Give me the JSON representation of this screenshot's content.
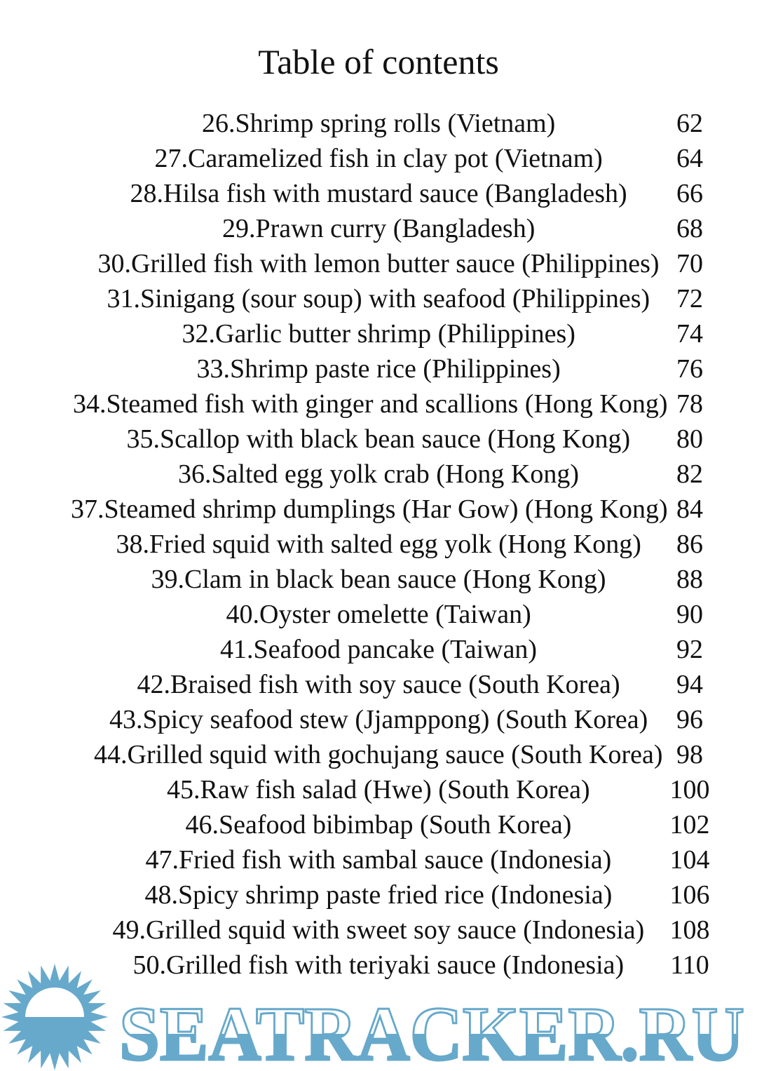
{
  "title": "Table of contents",
  "entries": [
    {
      "label": "26.Shrimp spring rolls (Vietnam)",
      "page": "62"
    },
    {
      "label": "27.Caramelized fish in clay pot (Vietnam)",
      "page": "64"
    },
    {
      "label": "28.Hilsa fish with mustard sauce (Bangladesh)",
      "page": "66"
    },
    {
      "label": "29.Prawn curry (Bangladesh)",
      "page": "68"
    },
    {
      "label": "30.Grilled fish with lemon butter sauce (Philippines)",
      "page": "70"
    },
    {
      "label": "31.Sinigang (sour soup) with seafood (Philippines)",
      "page": "72"
    },
    {
      "label": "32.Garlic butter shrimp (Philippines)",
      "page": "74"
    },
    {
      "label": "33.Shrimp paste rice (Philippines)",
      "page": "76"
    },
    {
      "label": "34.Steamed fish with ginger and scallions (Hong Kong)",
      "page": "78"
    },
    {
      "label": "35.Scallop with black bean sauce (Hong Kong)",
      "page": "80"
    },
    {
      "label": "36.Salted egg yolk crab (Hong Kong)",
      "page": "82"
    },
    {
      "label": "37.Steamed shrimp dumplings (Har Gow) (Hong Kong)",
      "page": "84"
    },
    {
      "label": "38.Fried squid with salted egg yolk (Hong Kong)",
      "page": "86"
    },
    {
      "label": "39.Clam in black bean sauce (Hong Kong)",
      "page": "88"
    },
    {
      "label": "40.Oyster omelette (Taiwan)",
      "page": "90"
    },
    {
      "label": "41.Seafood pancake (Taiwan)",
      "page": "92"
    },
    {
      "label": "42.Braised fish with soy sauce (South Korea)",
      "page": "94"
    },
    {
      "label": "43.Spicy seafood stew (Jjamppong) (South Korea)",
      "page": "96"
    },
    {
      "label": "44.Grilled squid with gochujang sauce (South Korea)",
      "page": "98"
    },
    {
      "label": "45.Raw fish salad (Hwe) (South Korea)",
      "page": "100"
    },
    {
      "label": "46.Seafood bibimbap (South Korea)",
      "page": "102"
    },
    {
      "label": "47.Fried fish with sambal sauce (Indonesia)",
      "page": "104"
    },
    {
      "label": "48.Spicy shrimp paste fried rice (Indonesia)",
      "page": "106"
    },
    {
      "label": "49.Grilled squid with sweet soy sauce (Indonesia)",
      "page": "108"
    },
    {
      "label": "50.Grilled fish with teriyaki sauce (Indonesia)",
      "page": "110"
    }
  ],
  "watermark": {
    "text": "SEATRACKER.RU",
    "color": "#67a9cb",
    "icon": "sun-icon"
  }
}
